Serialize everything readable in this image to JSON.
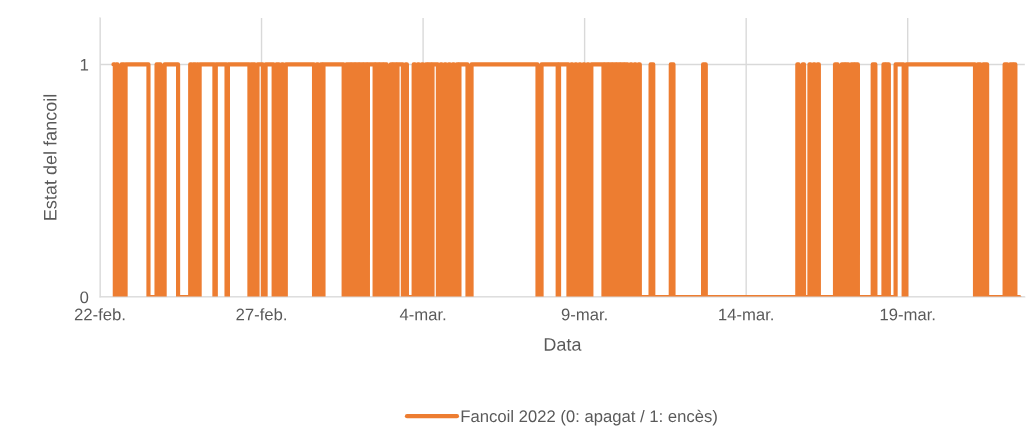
{
  "chart_data": {
    "type": "step",
    "xlabel": "Data",
    "ylabel": "Estat del fancoil",
    "legend": "bottom",
    "grid": true,
    "xlim": [
      "2022-02-22",
      "2022-03-22T15:00"
    ],
    "xticks": [
      {
        "value": "2022-02-22",
        "label": "22-feb."
      },
      {
        "value": "2022-02-27",
        "label": "27-feb."
      },
      {
        "value": "2022-03-04",
        "label": "4-mar."
      },
      {
        "value": "2022-03-09",
        "label": "9-mar."
      },
      {
        "value": "2022-03-14",
        "label": "14-mar."
      },
      {
        "value": "2022-03-19",
        "label": "19-mar."
      }
    ],
    "ylim": [
      0,
      1.2
    ],
    "yticks": [
      0,
      1
    ],
    "series": [
      {
        "name": "Fancoil 2022 (0: apagat / 1: encès)",
        "color": "#ed7d31",
        "x": [
          "2022-02-22T10:00",
          "2022-02-22T11:00",
          "2022-02-22T12:00",
          "2022-02-22T13:00",
          "2022-02-22T16:00",
          "2022-02-22T18:00",
          "2022-02-22T19:00",
          "2022-02-23T12:00",
          "2022-02-23T18:00",
          "2022-02-23T21:00",
          "2022-02-24T00:00",
          "2022-02-24T10:00",
          "2022-02-24T19:00",
          "2022-02-24T20:00",
          "2022-02-24T21:00",
          "2022-02-24T23:00",
          "2022-02-25T00:00",
          "2022-02-25T01:00",
          "2022-02-25T02:00",
          "2022-02-25T13:00",
          "2022-02-25T14:00",
          "2022-02-25T22:00",
          "2022-02-25T23:00",
          "2022-02-26T15:00",
          "2022-02-26T16:00",
          "2022-02-26T19:00",
          "2022-02-26T21:00",
          "2022-02-27T01:00",
          "2022-02-27T03:00",
          "2022-02-27T09:00",
          "2022-02-27T11:00",
          "2022-02-27T13:00",
          "2022-02-27T15:00",
          "2022-02-27T16:00",
          "2022-02-27T18:00",
          "2022-02-28T15:00",
          "2022-02-28T17:00",
          "2022-02-28T18:00",
          "2022-02-28T20:00",
          "2022-02-28T21:00",
          "2022-02-28T22:00",
          "2022-03-01T13:00",
          "2022-03-01T15:00",
          "2022-03-01T18:00",
          "2022-03-01T19:00",
          "2022-03-01T21:00",
          "2022-03-01T22:00",
          "2022-03-02T00:00",
          "2022-03-02T01:00",
          "2022-03-02T03:00",
          "2022-03-02T04:00",
          "2022-03-02T06:00",
          "2022-03-02T07:00",
          "2022-03-02T12:00",
          "2022-03-02T13:00",
          "2022-03-02T15:00",
          "2022-03-02T16:00",
          "2022-03-02T18:00",
          "2022-03-02T19:00",
          "2022-03-02T21:00",
          "2022-03-03T00:00",
          "2022-03-03T01:00",
          "2022-03-03T02:00",
          "2022-03-03T04:00",
          "2022-03-03T05:00",
          "2022-03-03T09:00",
          "2022-03-03T11:00",
          "2022-03-03T12:00",
          "2022-03-03T17:00",
          "2022-03-03T18:00",
          "2022-03-03T20:00",
          "2022-03-03T21:00",
          "2022-03-03T23:00",
          "2022-03-04T00:00",
          "2022-03-04T02:00",
          "2022-03-04T03:00",
          "2022-03-04T04:00",
          "2022-03-04T06:00",
          "2022-03-04T07:00",
          "2022-03-04T11:00",
          "2022-03-04T13:00",
          "2022-03-04T14:00",
          "2022-03-04T16:00",
          "2022-03-04T17:00",
          "2022-03-04T19:00",
          "2022-03-04T20:00",
          "2022-03-04T22:00",
          "2022-03-04T23:00",
          "2022-03-05T01:00",
          "2022-03-05T02:00",
          "2022-03-05T03:00",
          "2022-03-05T09:00",
          "2022-03-05T12:00",
          "2022-03-07T13:00",
          "2022-03-07T16:00",
          "2022-03-08T04:00",
          "2022-03-08T05:00",
          "2022-03-08T12:00",
          "2022-03-08T14:00",
          "2022-03-08T15:00",
          "2022-03-08T17:00",
          "2022-03-08T18:00",
          "2022-03-08T20:00",
          "2022-03-08T21:00",
          "2022-03-08T23:00",
          "2022-03-09T00:00",
          "2022-03-09T02:00",
          "2022-03-09T03:00",
          "2022-03-09T05:00",
          "2022-03-09T14:00",
          "2022-03-09T15:00",
          "2022-03-09T17:00",
          "2022-03-09T18:00",
          "2022-03-09T20:00",
          "2022-03-09T21:00",
          "2022-03-09T23:00",
          "2022-03-10T00:00",
          "2022-03-10T02:00",
          "2022-03-10T03:00",
          "2022-03-10T05:00",
          "2022-03-10T06:00",
          "2022-03-10T08:00",
          "2022-03-10T10:00",
          "2022-03-10T11:00",
          "2022-03-10T13:00",
          "2022-03-10T14:00",
          "2022-03-10T16:00",
          "2022-03-10T17:00",
          "2022-03-11T01:00",
          "2022-03-11T03:00",
          "2022-03-11T16:00",
          "2022-03-11T18:00",
          "2022-03-12T16:00",
          "2022-03-12T18:00",
          "2022-03-15T14:00",
          "2022-03-15T15:00",
          "2022-03-15T18:00",
          "2022-03-15T19:00",
          "2022-03-15T23:00",
          "2022-03-16T00:00",
          "2022-03-16T02:00",
          "2022-03-16T03:00",
          "2022-03-16T05:00",
          "2022-03-16T06:00",
          "2022-03-16T18:00",
          "2022-03-16T20:00",
          "2022-03-16T23:00",
          "2022-03-17T01:00",
          "2022-03-17T02:00",
          "2022-03-17T04:00",
          "2022-03-17T06:00",
          "2022-03-17T08:00",
          "2022-03-17T09:00",
          "2022-03-17T11:00",
          "2022-03-17T22:00",
          "2022-03-18T00:00",
          "2022-03-18T06:00",
          "2022-03-18T07:00",
          "2022-03-18T08:00",
          "2022-03-18T10:00",
          "2022-03-18T15:00",
          "2022-03-18T21:00",
          "2022-03-18T23:00",
          "2022-03-21T02:00",
          "2022-03-21T04:00",
          "2022-03-21T06:00",
          "2022-03-21T08:00",
          "2022-03-21T11:00",
          "2022-03-22T00:00",
          "2022-03-22T02:00",
          "2022-03-22T04:00",
          "2022-03-22T06:00",
          "2022-03-22T07:00",
          "2022-03-22T08:00",
          "2022-03-22T11:00"
        ],
        "values": [
          1,
          0,
          1,
          0,
          1,
          0,
          1,
          0,
          1,
          0,
          1,
          0,
          1,
          0,
          1,
          0,
          1,
          0,
          1,
          0,
          1,
          0,
          1,
          0,
          1,
          0,
          1,
          0,
          1,
          0,
          1,
          0,
          1,
          0,
          1,
          0,
          1,
          0,
          1,
          0,
          1,
          0,
          1,
          0,
          1,
          0,
          1,
          0,
          1,
          0,
          1,
          0,
          1,
          0,
          1,
          0,
          1,
          0,
          1,
          0,
          1,
          0,
          1,
          0,
          1,
          0,
          1,
          0,
          1,
          0,
          1,
          0,
          1,
          0,
          1,
          0,
          1,
          0,
          1,
          0,
          1,
          0,
          1,
          0,
          1,
          0,
          1,
          0,
          1,
          0,
          1,
          0,
          1,
          0,
          1,
          0,
          1,
          0,
          1,
          0,
          1,
          0,
          1,
          0,
          1,
          0,
          1,
          0,
          1,
          0,
          1,
          0,
          1,
          0,
          1,
          0,
          1,
          0,
          1,
          0,
          1,
          0,
          1,
          0,
          1,
          0,
          1,
          0,
          1,
          0,
          1,
          0,
          1,
          0,
          1,
          0,
          1,
          0,
          1,
          0,
          1,
          0,
          1,
          0,
          1,
          0,
          1,
          0,
          1,
          0,
          1,
          0,
          1,
          0,
          1,
          0,
          1,
          0,
          1,
          0,
          1,
          0,
          1,
          0,
          1,
          0,
          1,
          0,
          1,
          0,
          1,
          0,
          1,
          0,
          0
        ]
      }
    ]
  }
}
